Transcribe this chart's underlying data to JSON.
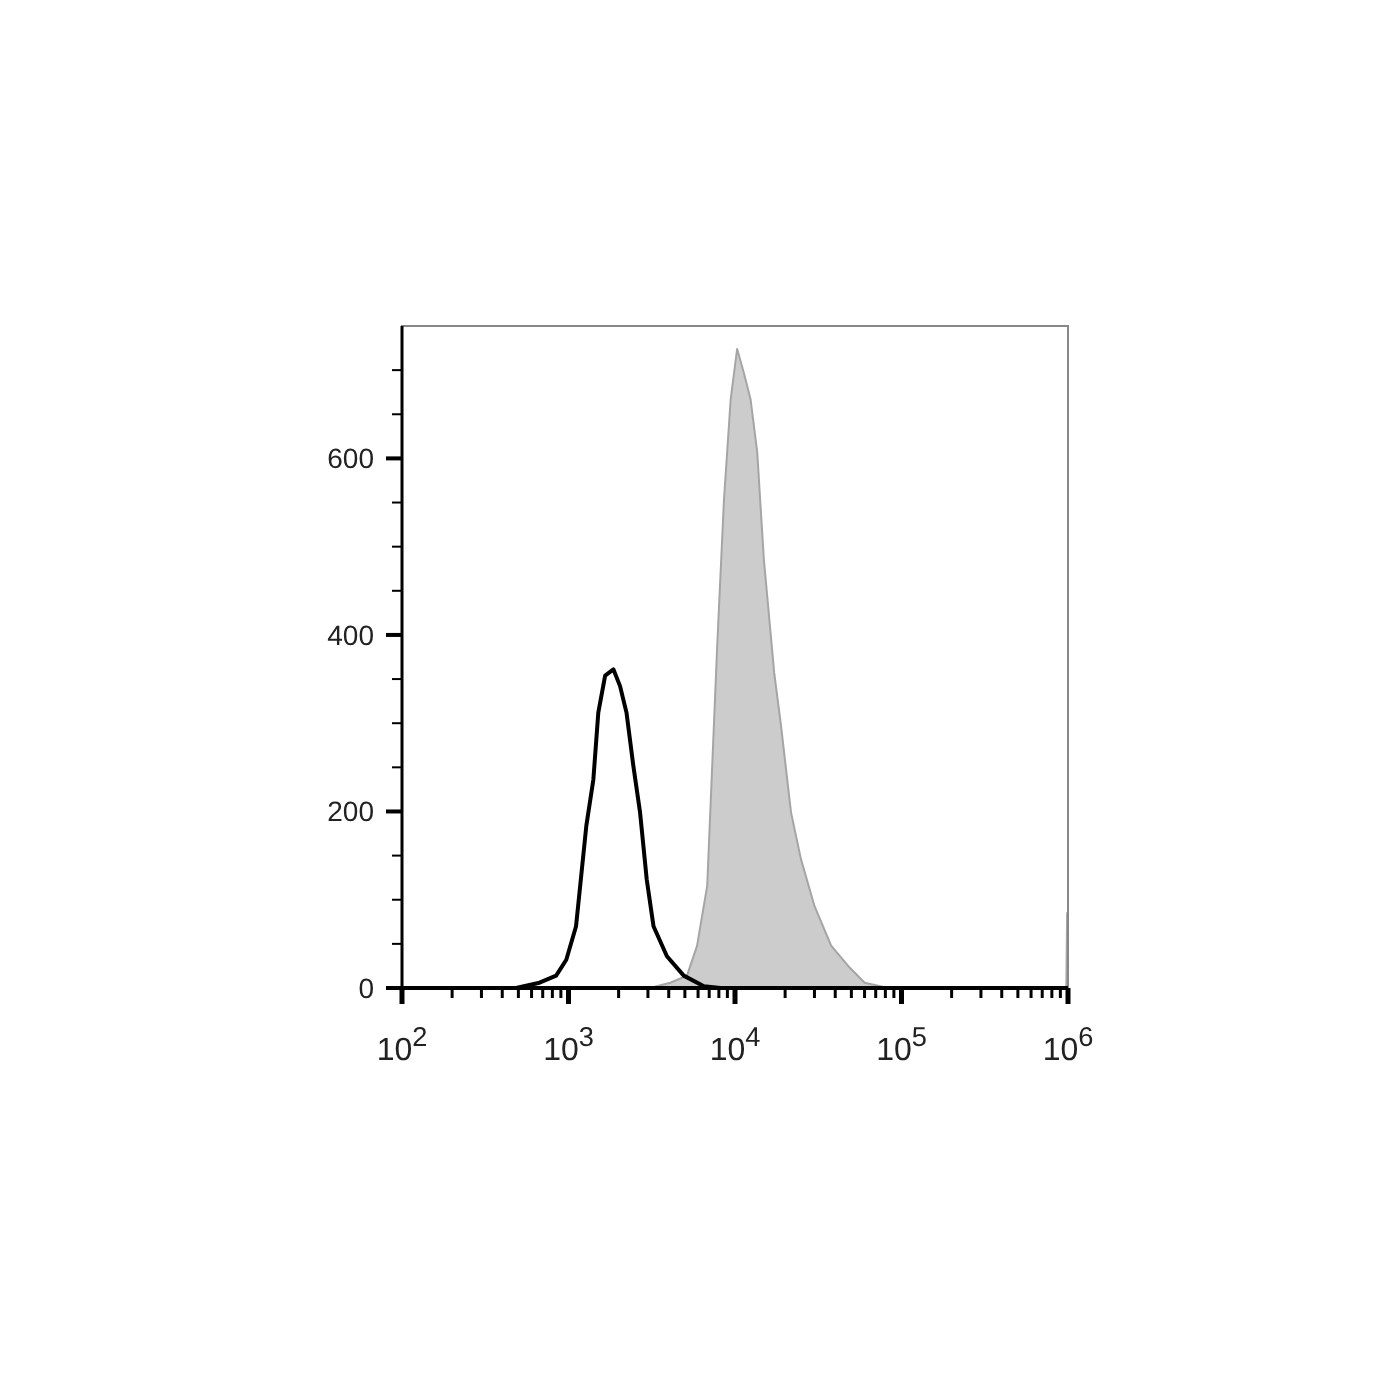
{
  "chart_data": {
    "type": "area",
    "log": "x",
    "xlim": [
      100,
      1000000
    ],
    "ylim": [
      0,
      750
    ],
    "xticks": [
      {
        "value": 100,
        "label": "10$^{2}$"
      },
      {
        "value": 200,
        "label": null
      },
      {
        "value": 300,
        "label": null
      },
      {
        "value": 400,
        "label": null
      },
      {
        "value": 500,
        "label": null
      },
      {
        "value": 600,
        "label": null
      },
      {
        "value": 700,
        "label": null
      },
      {
        "value": 800,
        "label": null
      },
      {
        "value": 900,
        "label": null
      },
      {
        "value": 1000,
        "label": "10$^{3}$"
      },
      {
        "value": 2000,
        "label": null
      },
      {
        "value": 3000,
        "label": null
      },
      {
        "value": 4000,
        "label": null
      },
      {
        "value": 5000,
        "label": null
      },
      {
        "value": 6000,
        "label": null
      },
      {
        "value": 7000,
        "label": null
      },
      {
        "value": 8000,
        "label": null
      },
      {
        "value": 9000,
        "label": null
      },
      {
        "value": 10000,
        "label": "10$^{4}$"
      },
      {
        "value": 20000,
        "label": null
      },
      {
        "value": 30000,
        "label": null
      },
      {
        "value": 40000,
        "label": null
      },
      {
        "value": 50000,
        "label": null
      },
      {
        "value": 60000,
        "label": null
      },
      {
        "value": 70000,
        "label": null
      },
      {
        "value": 80000,
        "label": null
      },
      {
        "value": 90000,
        "label": null
      },
      {
        "value": 100000,
        "label": "10$^{5}$"
      },
      {
        "value": 200000,
        "label": null
      },
      {
        "value": 300000,
        "label": null
      },
      {
        "value": 400000,
        "label": null
      },
      {
        "value": 500000,
        "label": null
      },
      {
        "value": 600000,
        "label": null
      },
      {
        "value": 700000,
        "label": null
      },
      {
        "value": 800000,
        "label": null
      },
      {
        "value": 900000,
        "label": null
      },
      {
        "value": 1000000,
        "label": "10$^{6}$"
      }
    ],
    "yticks": [
      0,
      {
        "value": 50,
        "label": null
      },
      {
        "value": 100,
        "label": null
      },
      {
        "value": 150,
        "label": null
      },
      200,
      {
        "value": 250,
        "label": null
      },
      {
        "value": 300,
        "label": null
      },
      {
        "value": 350,
        "label": null
      },
      400,
      {
        "value": 450,
        "label": null
      },
      {
        "value": 500,
        "label": null
      },
      {
        "value": 550,
        "label": null
      },
      600,
      {
        "value": 650,
        "label": null
      },
      {
        "value": 700,
        "label": null
      }
    ],
    "series": [
      {
        "color": "#cccccc",
        "x": [
          100,
          3090,
          4080,
          5150,
          5920,
          6810,
          7820,
          8590,
          9420,
          10300,
          11300,
          12400,
          13600,
          14900,
          17200,
          18900,
          21700,
          24900,
          30000,
          37800,
          47800,
          60100,
          83200,
          977000,
          988000,
          1000000
        ],
        "values": [
          0,
          0,
          6,
          14,
          48,
          116,
          388,
          554,
          667,
          724,
          697,
          667,
          607,
          486,
          357,
          297,
          199,
          146,
          93,
          48,
          25,
          6,
          0,
          0,
          85,
          85
        ]
      },
      {
        "type": "line",
        "color": "#000000",
        "x": [
          100,
          484,
          670,
          843,
          970,
          1110,
          1280,
          1410,
          1510,
          1660,
          1860,
          2040,
          2230,
          2450,
          2690,
          2950,
          3240,
          3900,
          4920,
          6500,
          8180,
          1000000
        ],
        "values": [
          0,
          0,
          6,
          14,
          32,
          70,
          184,
          236,
          312,
          354,
          361,
          342,
          312,
          252,
          199,
          123,
          70,
          36,
          14,
          2,
          0,
          0
        ]
      }
    ]
  }
}
